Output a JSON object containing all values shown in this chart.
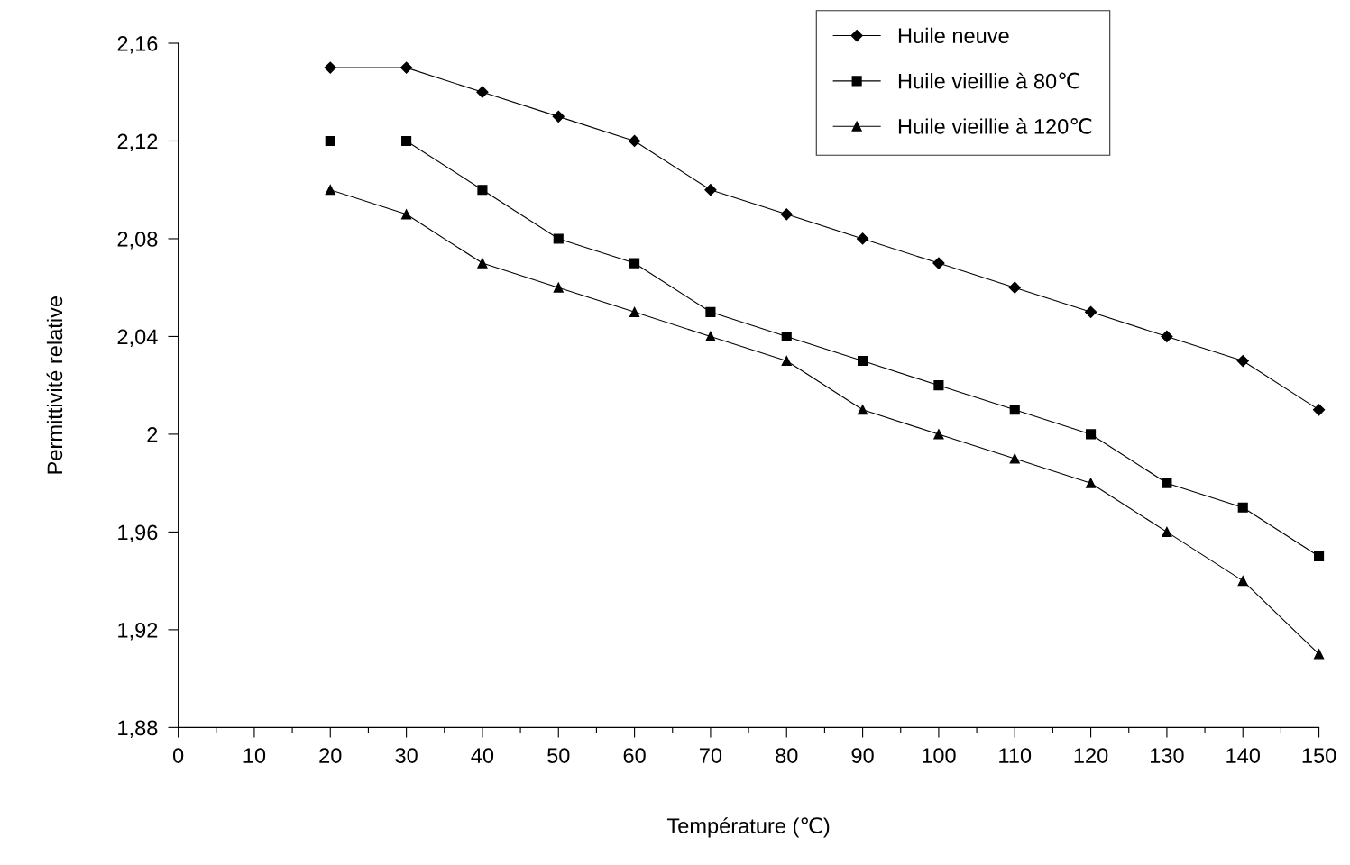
{
  "chart_data": {
    "type": "line",
    "xlabel": "Température (℃)",
    "ylabel": "Permittivité relative",
    "x": [
      20,
      30,
      40,
      50,
      60,
      70,
      80,
      90,
      100,
      110,
      120,
      130,
      140,
      150
    ],
    "series": [
      {
        "name": "Huile neuve",
        "color": "#000000",
        "marker": "diamond",
        "values": [
          2.15,
          2.15,
          2.14,
          2.13,
          2.12,
          2.1,
          2.09,
          2.08,
          2.07,
          2.06,
          2.05,
          2.04,
          2.03,
          2.01
        ]
      },
      {
        "name": "Huile vieillie à 80℃",
        "color": "#000000",
        "marker": "square",
        "values": [
          2.12,
          2.12,
          2.1,
          2.08,
          2.07,
          2.05,
          2.04,
          2.03,
          2.02,
          2.01,
          2.0,
          1.98,
          1.97,
          1.95
        ]
      },
      {
        "name": "Huile vieillie à 120℃",
        "color": "#000000",
        "marker": "triangle",
        "values": [
          2.1,
          2.09,
          2.07,
          2.06,
          2.05,
          2.04,
          2.03,
          2.01,
          2.0,
          1.99,
          1.98,
          1.96,
          1.94,
          1.91
        ]
      }
    ],
    "xlim": [
      0,
      150
    ],
    "xticks": [
      0,
      10,
      20,
      30,
      40,
      50,
      60,
      70,
      80,
      90,
      100,
      110,
      120,
      130,
      140,
      150
    ],
    "ylim": [
      1.88,
      2.16
    ],
    "yticks": [
      {
        "value": 1.88,
        "label": "1,88"
      },
      {
        "value": 1.92,
        "label": "1,92"
      },
      {
        "value": 1.96,
        "label": "1,96"
      },
      {
        "value": 2.0,
        "label": "2"
      },
      {
        "value": 2.04,
        "label": "2,04"
      },
      {
        "value": 2.08,
        "label": "2,08"
      },
      {
        "value": 2.12,
        "label": "2,12"
      },
      {
        "value": 2.16,
        "label": "2,16"
      }
    ],
    "grid": false,
    "legend": "top right",
    "line_style": "solid"
  }
}
